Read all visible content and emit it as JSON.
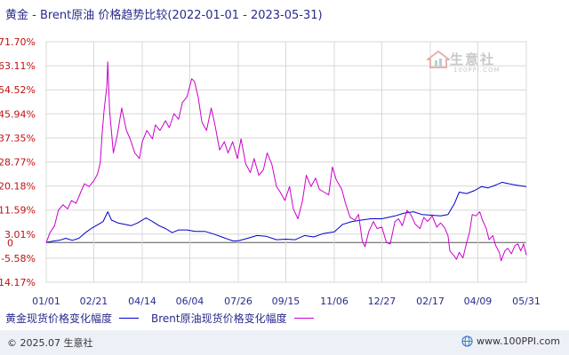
{
  "title": "黄金 - Brent原油 价格趋势比较(2022-01-01 - 2023-05-31)",
  "watermark": {
    "text": "生意社",
    "sub": "100PPI.COM"
  },
  "footer": {
    "copyright": "© 2025.07 生意社",
    "site": "www.100PPI.com"
  },
  "colors": {
    "gold": "#0000cc",
    "brent": "#cc00cc",
    "grid": "#d8d8d8",
    "zero": "#555555",
    "footer_bg": "#edf1f7"
  },
  "chart_data": {
    "type": "line",
    "title": "黄金 - Brent原油 价格趋势比较(2022-01-01 - 2023-05-31)",
    "xlabel": "",
    "ylabel": "",
    "ylim": [
      -14.17,
      71.7
    ],
    "y_ticks": [
      "71.70%",
      "63.11%",
      "54.52%",
      "45.94%",
      "37.35%",
      "28.77%",
      "20.18%",
      "11.59%",
      "3.01%",
      "-5.58%",
      "-14.17%"
    ],
    "y_tick_values": [
      71.7,
      63.11,
      54.52,
      45.94,
      37.35,
      28.77,
      20.18,
      11.59,
      3.01,
      -5.58,
      -14.17
    ],
    "zero_label": "0",
    "x_range": [
      "2022-01-01",
      "2023-05-31"
    ],
    "x_ticks": [
      "01/01",
      "02/21",
      "04/14",
      "06/04",
      "07/26",
      "09/15",
      "11/06",
      "12/27",
      "02/17",
      "04/09",
      "05/31"
    ],
    "x_tick_dates": [
      "2022-01-01",
      "2022-02-21",
      "2022-04-14",
      "2022-06-04",
      "2022-07-26",
      "2022-09-15",
      "2022-11-06",
      "2022-12-27",
      "2023-02-17",
      "2023-04-09",
      "2023-05-31"
    ],
    "grid": true,
    "legend_position": "bottom-left",
    "series": [
      {
        "name": "黄金现货价格变化幅度",
        "color": "#0000cc",
        "points": [
          [
            "2022-01-01",
            0.0
          ],
          [
            "2022-01-08",
            0.5
          ],
          [
            "2022-01-15",
            0.8
          ],
          [
            "2022-01-22",
            1.5
          ],
          [
            "2022-01-29",
            0.8
          ],
          [
            "2022-02-05",
            1.5
          ],
          [
            "2022-02-12",
            3.5
          ],
          [
            "2022-02-19",
            5.2
          ],
          [
            "2022-02-26",
            6.5
          ],
          [
            "2022-03-03",
            7.5
          ],
          [
            "2022-03-08",
            11.0
          ],
          [
            "2022-03-12",
            8.0
          ],
          [
            "2022-03-19",
            7.0
          ],
          [
            "2022-03-26",
            6.5
          ],
          [
            "2022-04-02",
            6.0
          ],
          [
            "2022-04-09",
            7.0
          ],
          [
            "2022-04-18",
            8.8
          ],
          [
            "2022-04-25",
            7.5
          ],
          [
            "2022-05-02",
            6.0
          ],
          [
            "2022-05-09",
            5.0
          ],
          [
            "2022-05-16",
            3.5
          ],
          [
            "2022-05-23",
            4.5
          ],
          [
            "2022-06-01",
            4.5
          ],
          [
            "2022-06-10",
            4.0
          ],
          [
            "2022-06-20",
            4.0
          ],
          [
            "2022-06-30",
            3.0
          ],
          [
            "2022-07-10",
            1.8
          ],
          [
            "2022-07-20",
            0.6
          ],
          [
            "2022-07-26",
            0.6
          ],
          [
            "2022-08-05",
            1.5
          ],
          [
            "2022-08-15",
            2.5
          ],
          [
            "2022-08-25",
            2.2
          ],
          [
            "2022-09-05",
            1.0
          ],
          [
            "2022-09-15",
            1.2
          ],
          [
            "2022-09-25",
            1.0
          ],
          [
            "2022-10-05",
            2.5
          ],
          [
            "2022-10-15",
            2.0
          ],
          [
            "2022-10-25",
            3.2
          ],
          [
            "2022-11-06",
            3.8
          ],
          [
            "2022-11-15",
            6.5
          ],
          [
            "2022-11-25",
            7.5
          ],
          [
            "2022-12-05",
            8.0
          ],
          [
            "2022-12-15",
            8.5
          ],
          [
            "2022-12-27",
            8.5
          ],
          [
            "2023-01-10",
            9.5
          ],
          [
            "2023-01-20",
            10.5
          ],
          [
            "2023-01-30",
            11.0
          ],
          [
            "2023-02-08",
            10.0
          ],
          [
            "2023-02-17",
            9.8
          ],
          [
            "2023-02-28",
            9.5
          ],
          [
            "2023-03-08",
            10.0
          ],
          [
            "2023-03-15",
            14.0
          ],
          [
            "2023-03-20",
            18.0
          ],
          [
            "2023-03-28",
            17.5
          ],
          [
            "2023-04-05",
            18.5
          ],
          [
            "2023-04-13",
            20.0
          ],
          [
            "2023-04-20",
            19.5
          ],
          [
            "2023-04-28",
            20.5
          ],
          [
            "2023-05-05",
            21.5
          ],
          [
            "2023-05-12",
            21.0
          ],
          [
            "2023-05-20",
            20.5
          ],
          [
            "2023-05-31",
            20.0
          ]
        ]
      },
      {
        "name": "Brent原油现货价格变化幅度",
        "color": "#cc00cc",
        "points": [
          [
            "2022-01-01",
            0.0
          ],
          [
            "2022-01-05",
            3.5
          ],
          [
            "2022-01-10",
            6.0
          ],
          [
            "2022-01-14",
            11.5
          ],
          [
            "2022-01-19",
            13.5
          ],
          [
            "2022-01-24",
            12.0
          ],
          [
            "2022-01-28",
            15.0
          ],
          [
            "2022-02-02",
            14.0
          ],
          [
            "2022-02-07",
            18.0
          ],
          [
            "2022-02-11",
            21.0
          ],
          [
            "2022-02-16",
            20.0
          ],
          [
            "2022-02-21",
            22.0
          ],
          [
            "2022-02-25",
            24.5
          ],
          [
            "2022-02-28",
            28.5
          ],
          [
            "2022-03-02",
            39.0
          ],
          [
            "2022-03-04",
            47.0
          ],
          [
            "2022-03-07",
            56.0
          ],
          [
            "2022-03-08",
            64.5
          ],
          [
            "2022-03-10",
            47.0
          ],
          [
            "2022-03-14",
            32.0
          ],
          [
            "2022-03-18",
            38.0
          ],
          [
            "2022-03-23",
            48.0
          ],
          [
            "2022-03-28",
            40.0
          ],
          [
            "2022-04-01",
            37.0
          ],
          [
            "2022-04-06",
            32.0
          ],
          [
            "2022-04-11",
            30.0
          ],
          [
            "2022-04-14",
            36.0
          ],
          [
            "2022-04-19",
            40.0
          ],
          [
            "2022-04-25",
            37.0
          ],
          [
            "2022-04-28",
            42.0
          ],
          [
            "2022-05-03",
            40.0
          ],
          [
            "2022-05-09",
            43.5
          ],
          [
            "2022-05-13",
            41.0
          ],
          [
            "2022-05-18",
            46.0
          ],
          [
            "2022-05-23",
            44.0
          ],
          [
            "2022-05-27",
            50.0
          ],
          [
            "2022-06-01",
            52.0
          ],
          [
            "2022-06-06",
            58.5
          ],
          [
            "2022-06-09",
            57.5
          ],
          [
            "2022-06-13",
            52.0
          ],
          [
            "2022-06-17",
            43.0
          ],
          [
            "2022-06-22",
            40.0
          ],
          [
            "2022-06-27",
            48.0
          ],
          [
            "2022-07-01",
            42.0
          ],
          [
            "2022-07-06",
            33.0
          ],
          [
            "2022-07-11",
            36.0
          ],
          [
            "2022-07-15",
            32.0
          ],
          [
            "2022-07-20",
            36.0
          ],
          [
            "2022-07-25",
            30.0
          ],
          [
            "2022-07-29",
            37.0
          ],
          [
            "2022-08-03",
            28.0
          ],
          [
            "2022-08-08",
            25.0
          ],
          [
            "2022-08-12",
            30.0
          ],
          [
            "2022-08-17",
            24.0
          ],
          [
            "2022-08-22",
            26.0
          ],
          [
            "2022-08-26",
            32.0
          ],
          [
            "2022-08-31",
            28.0
          ],
          [
            "2022-09-05",
            20.0
          ],
          [
            "2022-09-09",
            18.0
          ],
          [
            "2022-09-14",
            15.0
          ],
          [
            "2022-09-19",
            20.0
          ],
          [
            "2022-09-23",
            12.0
          ],
          [
            "2022-09-28",
            8.5
          ],
          [
            "2022-10-03",
            15.0
          ],
          [
            "2022-10-07",
            24.0
          ],
          [
            "2022-10-12",
            20.0
          ],
          [
            "2022-10-17",
            23.0
          ],
          [
            "2022-10-21",
            19.0
          ],
          [
            "2022-10-26",
            18.0
          ],
          [
            "2022-10-31",
            17.0
          ],
          [
            "2022-11-04",
            27.0
          ],
          [
            "2022-11-08",
            22.5
          ],
          [
            "2022-11-14",
            19.0
          ],
          [
            "2022-11-18",
            14.0
          ],
          [
            "2022-11-23",
            9.0
          ],
          [
            "2022-11-28",
            8.0
          ],
          [
            "2022-12-02",
            10.0
          ],
          [
            "2022-12-06",
            0.5
          ],
          [
            "2022-12-09",
            -1.5
          ],
          [
            "2022-12-13",
            4.0
          ],
          [
            "2022-12-18",
            7.5
          ],
          [
            "2022-12-22",
            5.0
          ],
          [
            "2022-12-27",
            5.5
          ],
          [
            "2023-01-01",
            0.0
          ],
          [
            "2023-01-05",
            -0.5
          ],
          [
            "2023-01-10",
            7.5
          ],
          [
            "2023-01-14",
            8.5
          ],
          [
            "2023-01-18",
            6.0
          ],
          [
            "2023-01-23",
            11.5
          ],
          [
            "2023-01-27",
            10.0
          ],
          [
            "2023-02-01",
            6.5
          ],
          [
            "2023-02-06",
            5.0
          ],
          [
            "2023-02-10",
            9.0
          ],
          [
            "2023-02-14",
            7.5
          ],
          [
            "2023-02-19",
            9.5
          ],
          [
            "2023-02-24",
            5.5
          ],
          [
            "2023-02-28",
            7.0
          ],
          [
            "2023-03-04",
            5.5
          ],
          [
            "2023-03-08",
            2.5
          ],
          [
            "2023-03-10",
            -3.0
          ],
          [
            "2023-03-14",
            -4.5
          ],
          [
            "2023-03-17",
            -6.0
          ],
          [
            "2023-03-20",
            -3.5
          ],
          [
            "2023-03-24",
            -5.5
          ],
          [
            "2023-03-28",
            0.0
          ],
          [
            "2023-03-31",
            3.5
          ],
          [
            "2023-04-03",
            10.0
          ],
          [
            "2023-04-07",
            9.5
          ],
          [
            "2023-04-11",
            11.0
          ],
          [
            "2023-04-14",
            8.0
          ],
          [
            "2023-04-18",
            5.0
          ],
          [
            "2023-04-21",
            1.0
          ],
          [
            "2023-04-25",
            2.5
          ],
          [
            "2023-04-28",
            -1.0
          ],
          [
            "2023-05-02",
            -3.5
          ],
          [
            "2023-05-04",
            -6.5
          ],
          [
            "2023-05-08",
            -3.0
          ],
          [
            "2023-05-11",
            -2.0
          ],
          [
            "2023-05-15",
            -4.0
          ],
          [
            "2023-05-19",
            -1.0
          ],
          [
            "2023-05-22",
            -0.5
          ],
          [
            "2023-05-25",
            -3.0
          ],
          [
            "2023-05-28",
            -0.5
          ],
          [
            "2023-05-31",
            -4.5
          ]
        ]
      }
    ]
  }
}
